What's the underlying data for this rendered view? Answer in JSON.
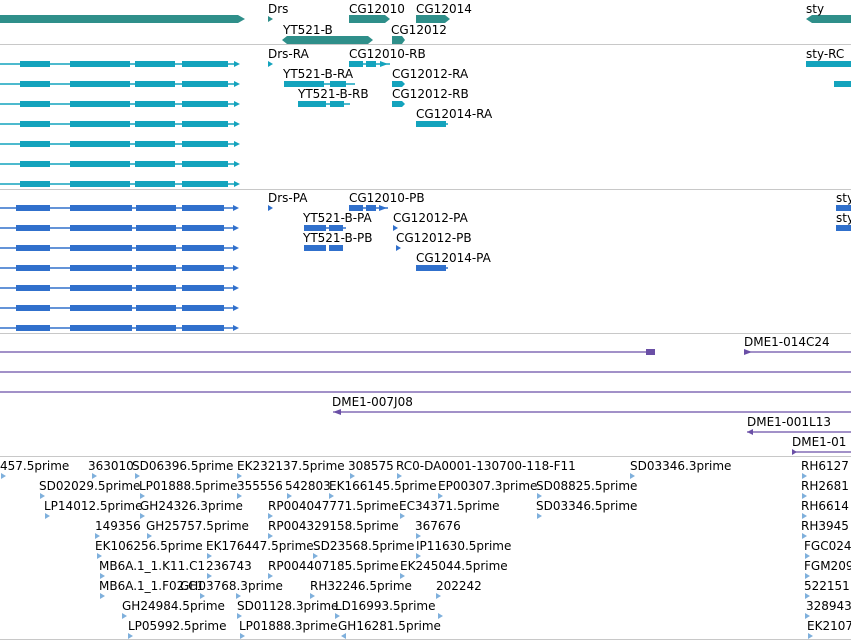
{
  "colors": {
    "gene": "#2f8f8a",
    "transcript": "#14a3bd",
    "protein": "#3070cc",
    "clone": "#6a4fa6",
    "est": "#7fb0dc"
  },
  "gene_track": {
    "labels": [
      "Drs",
      "CG12010",
      "CG12014",
      "sty",
      "YT521-B",
      "CG12012"
    ]
  },
  "transcript_track": {
    "labels": [
      "Drs-RA",
      "CG12010-RB",
      "sty-RC",
      "YT521-B-RA",
      "CG12012-RA",
      "YT521-B-RB",
      "CG12012-RB",
      "CG12014-RA"
    ]
  },
  "protein_track": {
    "labels": [
      "Drs-PA",
      "CG12010-PB",
      "sty",
      "YT521-B-PA",
      "CG12012-PA",
      "sty",
      "YT521-B-PB",
      "CG12012-PB",
      "CG12014-PA"
    ]
  },
  "clone_track": {
    "labels": [
      "DME1-014C24",
      "DME1-007J08",
      "DME1-001L13",
      "DME1-01"
    ]
  },
  "est_track": {
    "labels": [
      "457.5prime",
      "363010",
      "SD06396.5prime",
      "EK232137.5prime",
      "308575",
      "RC0-DA0001-130700-118-F11",
      "SD03346.3prime",
      "RH6127",
      "SD02029.5prime",
      "LP01888.5prime",
      "355556",
      "542803",
      "EK166145.5prime",
      "EP00307.3prime",
      "SD08825.5prime",
      "RH2681",
      "LP14012.5prime",
      "GH24326.3prime",
      "RP004047771.5prime",
      "EC34371.5prime",
      "SD03346.5prime",
      "RH6614",
      "149356",
      "GH25757.5prime",
      "RP004329158.5prime",
      "367676",
      "RH3945",
      "EK106256.5prime",
      "EK176447.5prime",
      "SD23568.5prime",
      "IP11630.5prime",
      "FGC024",
      "MB6A.1_1.K11.C1",
      "236743",
      "RP004407185.5prime",
      "EK245044.5prime",
      "FGM209",
      "MB6A.1_1.F02.C1",
      "GH03768.3prime",
      "RH32246.5prime",
      "202242",
      "522151",
      "GH24984.5prime",
      "SD01128.3prime",
      "LD16993.5prime",
      "328943",
      "LP05992.5prime",
      "LP01888.3prime",
      "GH16281.5prime",
      "EK2107"
    ]
  }
}
